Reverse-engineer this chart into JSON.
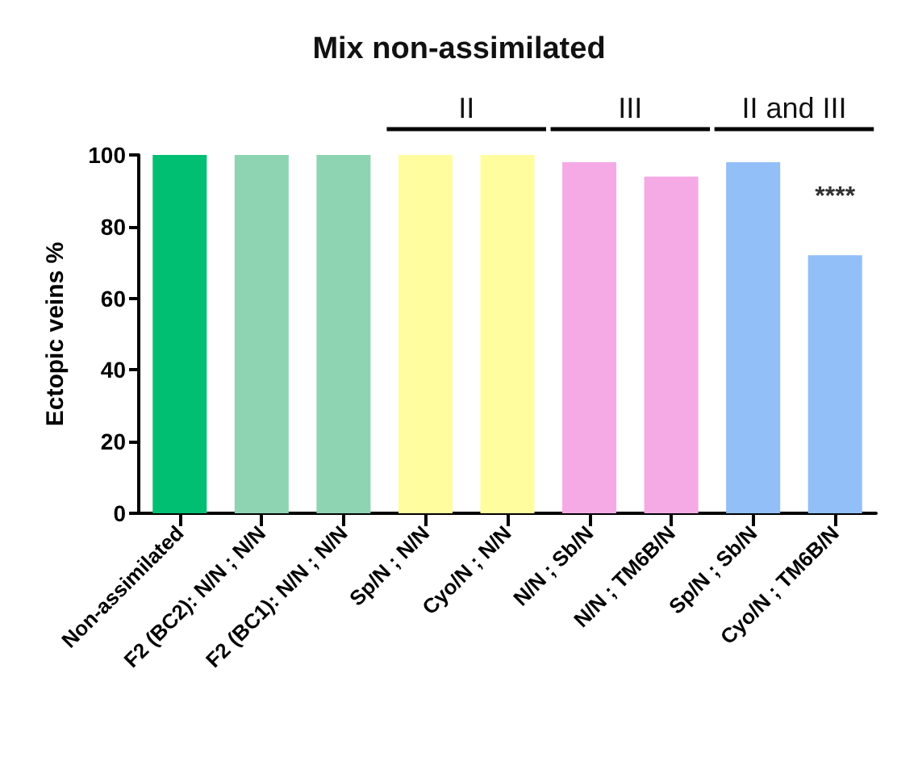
{
  "chart_data": {
    "type": "bar",
    "title": "Mix non-assimilated",
    "ylabel": "Ectopic veins %",
    "categories": [
      "Non-assimilated",
      "F2 (BC2): N/N ; N/N",
      "F2 (BC1): N/N ; N/N",
      "Sp/N ; N/N",
      "Cyo/N ; N/N",
      "N/N ; Sb/N",
      "N/N ; TM6B/N",
      "Sp/N ; Sb/N",
      "Cyo/N ; TM6B/N"
    ],
    "values": [
      100,
      100,
      100,
      100,
      100,
      98,
      94,
      98,
      72
    ],
    "colors": [
      "#00bf73",
      "#8ed4b2",
      "#8ed4b2",
      "#fffd9e",
      "#fffd9e",
      "#f5aae6",
      "#f5aae6",
      "#92bff8",
      "#92bff8"
    ],
    "ylim": [
      0,
      100
    ],
    "yticks": [
      0,
      20,
      40,
      60,
      80,
      100
    ],
    "grid": false,
    "annotations": [
      "II",
      "III",
      "II and III",
      "****"
    ]
  }
}
